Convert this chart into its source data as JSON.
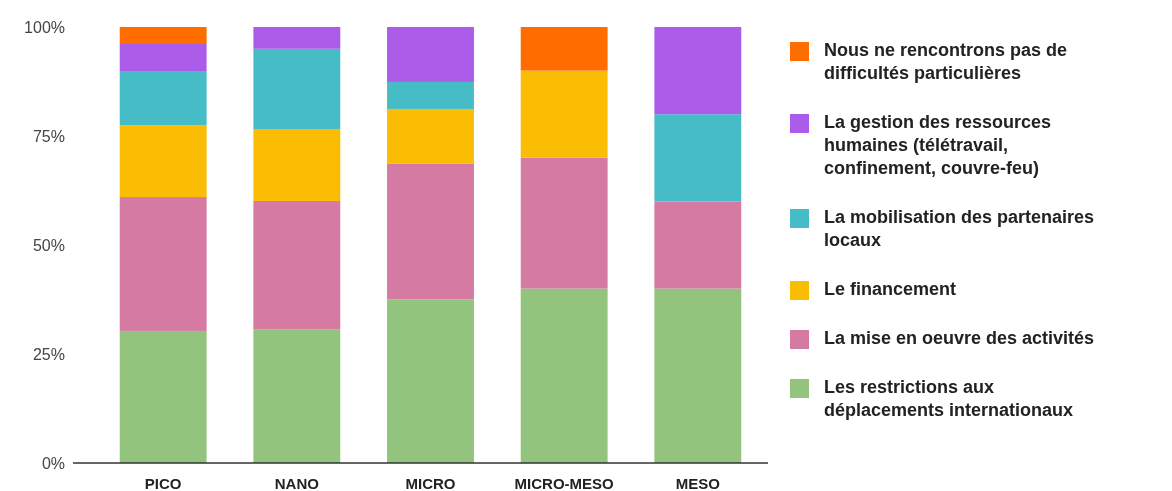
{
  "chart_data": {
    "type": "bar",
    "stacked": true,
    "categories": [
      "PICO",
      "NANO",
      "MICRO",
      "MICRO-MESO",
      "MESO"
    ],
    "ylim": [
      0,
      100
    ],
    "yticks": [
      {
        "value": 0,
        "label": "0%"
      },
      {
        "value": 25,
        "label": "25%"
      },
      {
        "value": 50,
        "label": "50%"
      },
      {
        "value": 75,
        "label": "75%"
      },
      {
        "value": 100,
        "label": "100%"
      }
    ],
    "grid": false,
    "legend": "right",
    "series": [
      {
        "name": "Les restrictions aux déplacements internationaux",
        "color": "#93c47d",
        "values": [
          30.3,
          30.7,
          37.5,
          40,
          40
        ]
      },
      {
        "name": "La mise en oeuvre des activités",
        "color": "#d57aa3",
        "values": [
          30.7,
          29.4,
          31.2,
          30,
          20
        ]
      },
      {
        "name": "Le financement",
        "color": "#fbbc04",
        "values": [
          16.5,
          16.5,
          12.5,
          20,
          0
        ]
      },
      {
        "name": "La mobilisation des partenaires locaux",
        "color": "#46bdc6",
        "values": [
          12.4,
          18.4,
          6.2,
          0,
          20
        ]
      },
      {
        "name": "La gestion des ressources humaines (télétravail, confinement, couvre-feu)",
        "color": "#ab5ce9",
        "values": [
          6.2,
          5.0,
          12.6,
          0,
          20
        ]
      },
      {
        "name": "Nous ne rencontrons pas de difficultés particulières",
        "color": "#ff6d01",
        "values": [
          3.9,
          0,
          0,
          10,
          0
        ]
      }
    ]
  }
}
